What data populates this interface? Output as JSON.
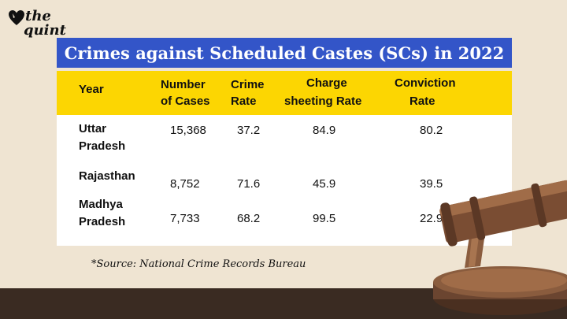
{
  "brand": {
    "line1": "the",
    "line2": "quint"
  },
  "title": "Crimes against Scheduled Castes (SCs) in 2022",
  "headers": {
    "year": "Year",
    "cases_1": "Number",
    "cases_2": "of Cases",
    "rate_1": "Crime",
    "rate_2": "Rate",
    "charge_1": "Charge",
    "charge_2": "sheeting Rate",
    "conv_1": "Conviction",
    "conv_2": "Rate"
  },
  "rows": [
    {
      "state_1": "Uttar",
      "state_2": "Pradesh",
      "cases": "15,368",
      "crime_rate": "37.2",
      "charge_rate": "84.9",
      "conviction_rate": "80.2"
    },
    {
      "state_1": "Rajasthan",
      "state_2": "",
      "cases": "8,752",
      "crime_rate": "71.6",
      "charge_rate": "45.9",
      "conviction_rate": "39.5"
    },
    {
      "state_1": "Madhya",
      "state_2": "Pradesh",
      "cases": "7,733",
      "crime_rate": "68.2",
      "charge_rate": "99.5",
      "conviction_rate": "22.9"
    }
  ],
  "source": "*Source: National Crime Records Bureau",
  "colors": {
    "title_bg": "#3355c8",
    "header_bg": "#fcd602",
    "page_bg": "#efe4d2",
    "floor": "#3a2b22"
  },
  "icons": {
    "logo": "heart-icon",
    "illustration": "gavel-icon"
  }
}
